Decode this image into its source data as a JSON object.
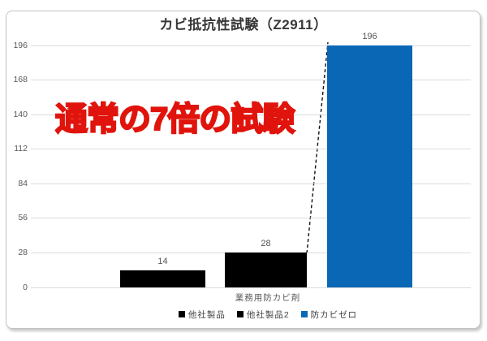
{
  "chart_data": {
    "type": "bar",
    "title": "カビ抵抗性試験（Z2911）",
    "categories": [
      "業務用防カビ剤"
    ],
    "series": [
      {
        "name": "他社製品",
        "values": [
          14
        ],
        "color": "#000000"
      },
      {
        "name": "他社製品2",
        "values": [
          28
        ],
        "color": "#000000"
      },
      {
        "name": "防カビゼロ",
        "values": [
          196
        ],
        "color": "#0a67b5"
      }
    ],
    "data_labels": [
      "14",
      "28",
      "196"
    ],
    "xlabel": "業務用防カビ剤",
    "ylabel": "",
    "ylim": [
      0,
      196
    ],
    "yticks": [
      0,
      28,
      56,
      84,
      112,
      140,
      168,
      196
    ],
    "grid": true,
    "legend_position": "bottom",
    "annotation": "通常の7倍の試験",
    "annotation_color": "#e0140c",
    "gridline_color": "#dcdcdc",
    "tick_color": "#595959",
    "title_color": "#383838"
  }
}
